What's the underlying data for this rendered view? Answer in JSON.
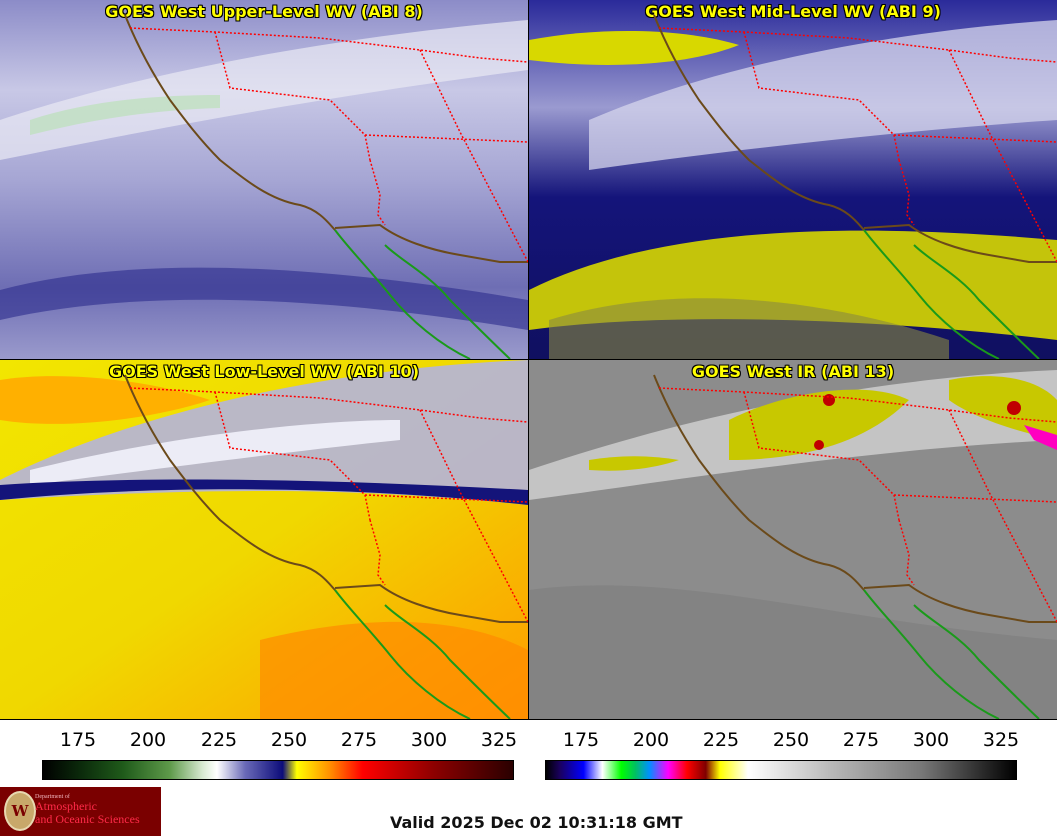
{
  "panels": [
    {
      "title": "GOES West Upper-Level WV (ABI 8)",
      "icon": "satellite-water-vapor-image"
    },
    {
      "title": "GOES West Mid-Level WV (ABI 9)",
      "icon": "satellite-water-vapor-image"
    },
    {
      "title": "GOES West Low-Level WV (ABI 10)",
      "icon": "satellite-water-vapor-image"
    },
    {
      "title": "GOES West IR (ABI 13)",
      "icon": "satellite-infrared-image"
    }
  ],
  "colorbars": {
    "wv": {
      "ticks": [
        "175",
        "200",
        "225",
        "250",
        "275",
        "300",
        "325"
      ]
    },
    "ir": {
      "ticks": [
        "175",
        "200",
        "225",
        "250",
        "275",
        "300",
        "325"
      ]
    }
  },
  "logo": {
    "dept": "Department of",
    "line1": "Atmospheric",
    "line2": "and Oceanic Sciences",
    "seal_letter": "W"
  },
  "valid_time": "Valid 2025 Dec 02 10:31:18 GMT",
  "colors": {
    "title_text": "#ffff00",
    "state_borders": "#ff0000",
    "coastline": "#6b4a1a",
    "mexico_coast": "#1a9a1a",
    "logo_bg": "#7a0000"
  }
}
